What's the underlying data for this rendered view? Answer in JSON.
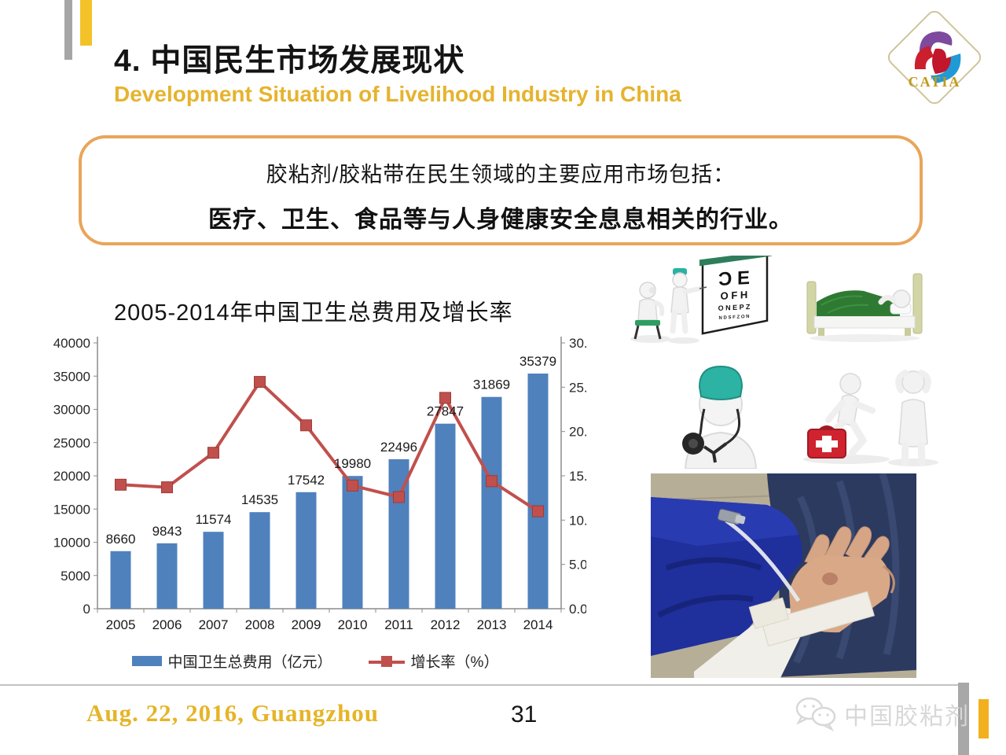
{
  "header": {
    "title": "4. 中国民生市场发展现状",
    "subtitle": "Development Situation of Livelihood Industry in China",
    "logo_text": "CATIA"
  },
  "callout": {
    "line1": "胶粘剂/胶粘带在民生领域的主要应用市场包括：",
    "line2": "医疗、卫生、食品等与人身健康安全息息相关的行业。"
  },
  "chart_data": {
    "type": "bar",
    "combo": "bar+line",
    "title": "2005-2014年中国卫生总费用及增长率",
    "categories": [
      "2005",
      "2006",
      "2007",
      "2008",
      "2009",
      "2010",
      "2011",
      "2012",
      "2013",
      "2014"
    ],
    "series": [
      {
        "name": "中国卫生总费用（亿元）",
        "type": "bar",
        "axis": "left",
        "color": "#4f81bd",
        "values": [
          8660,
          9843,
          11574,
          14535,
          17542,
          19980,
          22496,
          27847,
          31869,
          35379
        ]
      },
      {
        "name": "增长率（%）",
        "type": "line",
        "axis": "right",
        "color": "#c0504d",
        "values": [
          14.0,
          13.7,
          17.6,
          25.6,
          20.7,
          13.9,
          12.6,
          23.8,
          14.4,
          11.0
        ]
      }
    ],
    "left_axis": {
      "min": 0,
      "max": 40000,
      "step": 5000
    },
    "right_axis": {
      "min": 0,
      "max": 30,
      "step": 5,
      "decimals": 2
    },
    "legend_position": "bottom",
    "grid": false,
    "data_labels": "bar-series"
  },
  "illustrations": {
    "eye_exam": {
      "rows": [
        "Ɔ E",
        "O F H",
        "O N E P Z",
        "N D S F Z O N"
      ]
    },
    "patient_bed": {},
    "doctor": {},
    "first_aid": {},
    "iv_photo": {}
  },
  "footer": {
    "date": "Aug. 22, 2016, Guangzhou",
    "page_number": "31",
    "wechat_label": "中国胶粘剂"
  },
  "colors": {
    "accent_gold": "#e6b32e",
    "bar_blue": "#4f81bd",
    "line_red": "#c0504d",
    "callout_border": "#e9a55b",
    "deco_gray": "#a6a6a6",
    "deco_yellow": "#f3c229",
    "watermark_gray": "#d8d8d8"
  }
}
